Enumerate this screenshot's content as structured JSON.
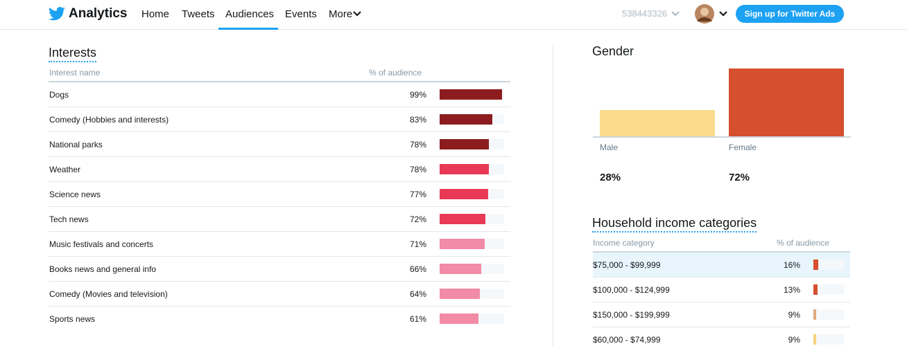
{
  "nav": {
    "brand": "Analytics",
    "links": [
      "Home",
      "Tweets",
      "Audiences",
      "Events",
      "More"
    ],
    "active": 2,
    "account": "538443326",
    "cta": "Sign up for Twitter Ads"
  },
  "interests": {
    "title": "Interests",
    "columns": [
      "Interest name",
      "% of audience"
    ],
    "rows": [
      {
        "name": "Dogs",
        "value": 99,
        "label": "99%",
        "color": "#8c1d1e"
      },
      {
        "name": "Comedy (Hobbies and interests)",
        "value": 83,
        "label": "83%",
        "color": "#8c1d1e"
      },
      {
        "name": "National parks",
        "value": 78,
        "label": "78%",
        "color": "#8c1d1e"
      },
      {
        "name": "Weather",
        "value": 78,
        "label": "78%",
        "color": "#e83a56"
      },
      {
        "name": "Science news",
        "value": 77,
        "label": "77%",
        "color": "#e83a56"
      },
      {
        "name": "Tech news",
        "value": 72,
        "label": "72%",
        "color": "#e83a56"
      },
      {
        "name": "Music festivals and concerts",
        "value": 71,
        "label": "71%",
        "color": "#f28ba5"
      },
      {
        "name": "Books news and general info",
        "value": 66,
        "label": "66%",
        "color": "#f28ba5"
      },
      {
        "name": "Comedy (Movies and television)",
        "value": 64,
        "label": "64%",
        "color": "#f28ba5"
      },
      {
        "name": "Sports news",
        "value": 61,
        "label": "61%",
        "color": "#f28ba5"
      }
    ]
  },
  "gender": {
    "title": "Gender",
    "bars": [
      {
        "name": "Male",
        "value": 28,
        "label": "28%",
        "color": "#fadb8c"
      },
      {
        "name": "Female",
        "value": 72,
        "label": "72%",
        "color": "#d64f2f"
      }
    ]
  },
  "income": {
    "title": "Household income categories",
    "columns": [
      "Income category",
      "% of audience"
    ],
    "highlighted": 0,
    "rows": [
      {
        "name": "$75,000 - $99,999",
        "value": 16,
        "label": "16%",
        "color": "#d64f2f"
      },
      {
        "name": "$100,000 - $124,999",
        "value": 13,
        "label": "13%",
        "color": "#d64f2f"
      },
      {
        "name": "$150,000 - $199,999",
        "value": 9,
        "label": "9%",
        "color": "#e0a87a"
      },
      {
        "name": "$60,000 - $74,999",
        "value": 9,
        "label": "9%",
        "color": "#f5d27a"
      }
    ]
  }
}
